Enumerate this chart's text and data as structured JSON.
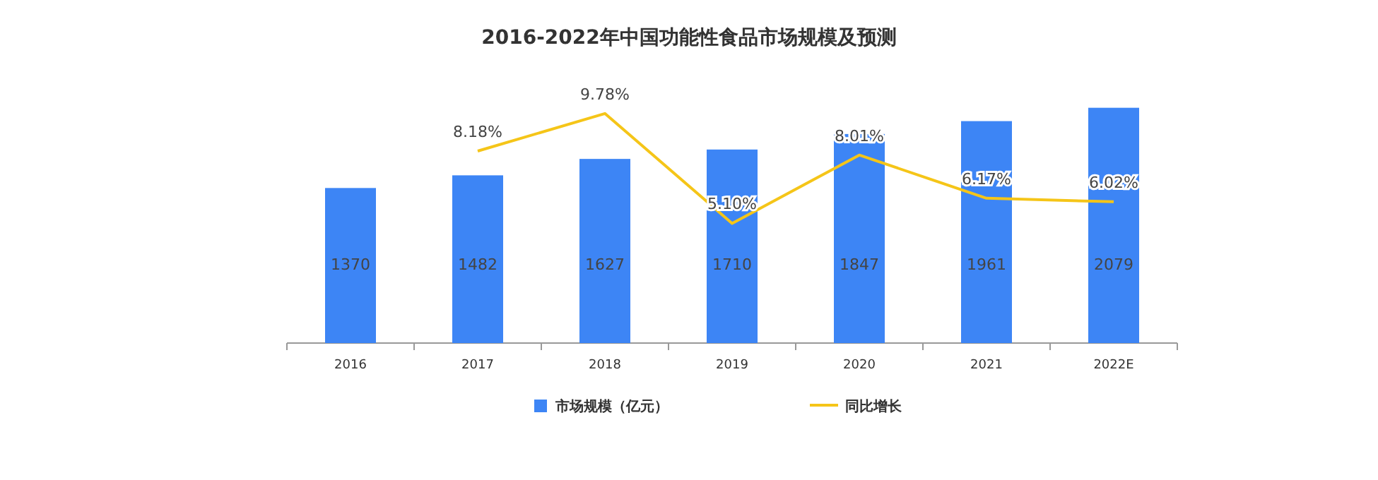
{
  "chart_data": {
    "type": "bar",
    "title": "2016-2022年中国功能性食品市场规模及预测",
    "categories": [
      "2016",
      "2017",
      "2018",
      "2019",
      "2020",
      "2021",
      "2022E"
    ],
    "series": [
      {
        "name": "市场规模（亿元）",
        "color": "#3d85f5",
        "values": [
          1370,
          1482,
          1627,
          1710,
          1847,
          1961,
          2079
        ],
        "value_labels": [
          "1370",
          "1482",
          "1627",
          "1710",
          "1847",
          "1961",
          "2079"
        ]
      },
      {
        "name": "同比增长",
        "type": "line",
        "axis": "y2",
        "color": "#f5c518",
        "values": [
          null,
          8.18,
          9.78,
          5.1,
          8.01,
          6.17,
          6.02
        ],
        "value_labels": [
          null,
          "8.18%",
          "9.78%",
          "5.10%",
          "8.01%",
          "6.17%",
          "6.02%"
        ]
      }
    ],
    "legend": "bottom",
    "grid": false,
    "marker": "none"
  }
}
